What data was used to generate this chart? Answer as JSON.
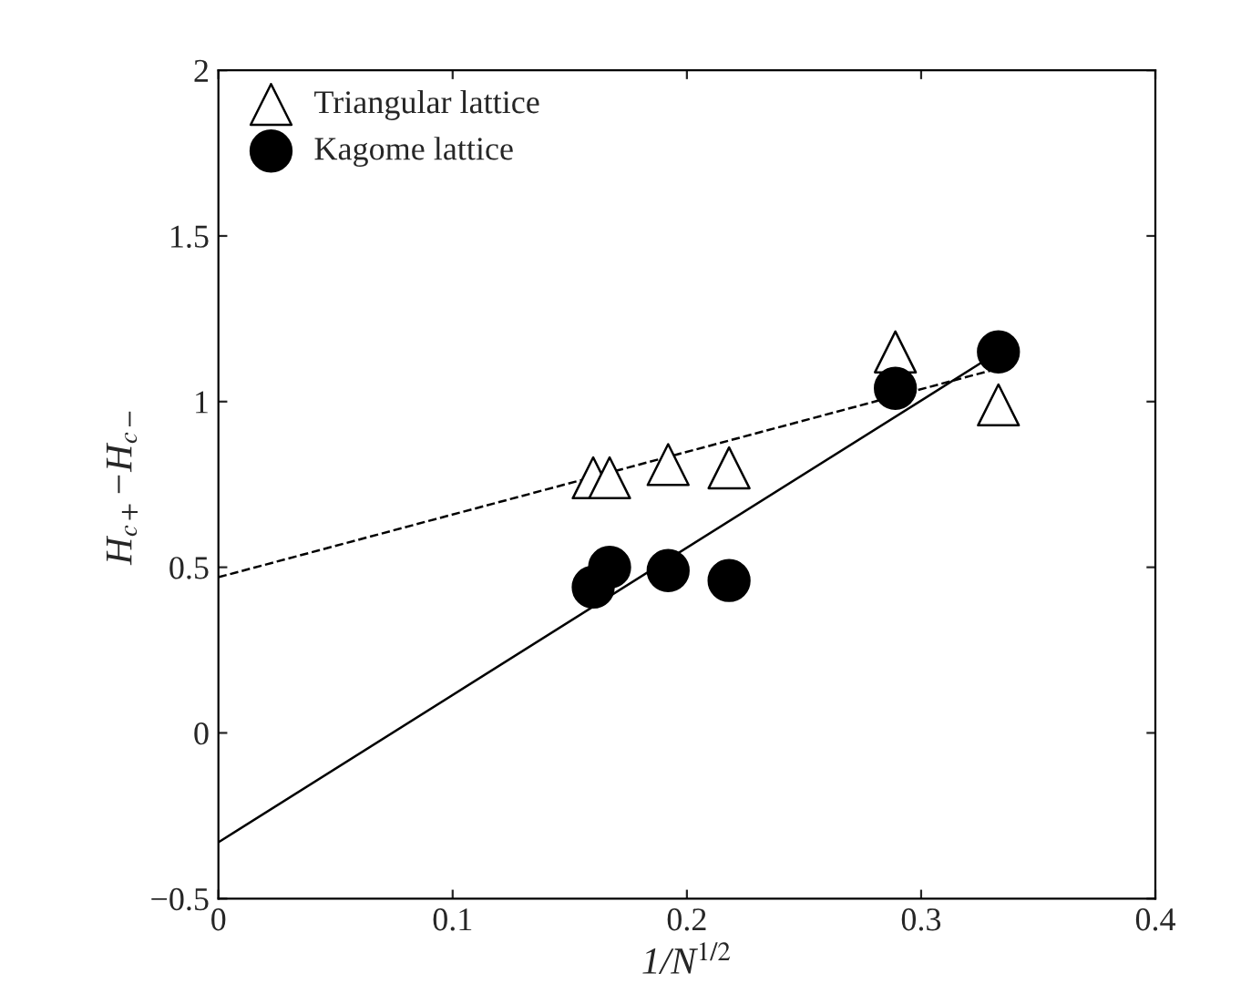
{
  "chart_data": {
    "type": "scatter",
    "xlabel": "1/N$^{1/2}$",
    "ylabel": "H$_{c+}$−H$_{c−}$",
    "xlim": [
      0,
      0.4
    ],
    "xticks": [
      0,
      0.1,
      0.2,
      0.3,
      0.4
    ],
    "ylim": [
      -0.5,
      2
    ],
    "yticks": [
      {
        "value": -0.5,
        "label": "−0.5"
      },
      0,
      0.5,
      1,
      1.5,
      2
    ],
    "grid": false,
    "legend": "top left",
    "series": [
      {
        "name": "Triangular lattice",
        "color": "#000000",
        "marker": "triangle",
        "x": [
          0.16,
          0.167,
          0.192,
          0.218,
          0.289,
          0.333
        ],
        "values": [
          0.77,
          0.77,
          0.81,
          0.8,
          1.15,
          0.99
        ]
      },
      {
        "name": "Kagome lattice",
        "color": "#000000",
        "marker": "circle",
        "x": [
          0.16,
          0.167,
          0.192,
          0.218,
          0.289,
          0.333
        ],
        "values": [
          0.44,
          0.5,
          0.49,
          0.46,
          1.04,
          1.15
        ]
      },
      {
        "type": "line",
        "color": "#000000",
        "line_style": "dashed",
        "x": [
          0,
          0.333
        ],
        "values": [
          0.47,
          1.1
        ]
      },
      {
        "type": "line",
        "color": "#000000",
        "line_style": "solid",
        "x": [
          0,
          0.333
        ],
        "values": [
          -0.33,
          1.15
        ]
      }
    ]
  }
}
